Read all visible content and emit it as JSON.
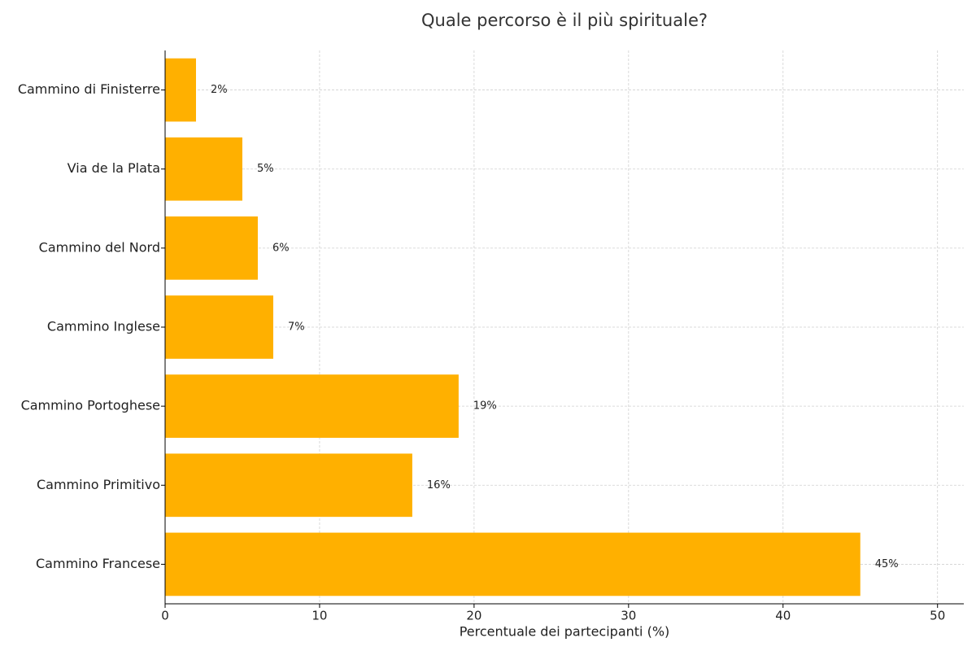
{
  "chart_data": {
    "type": "hbar",
    "title": "Quale percorso è il più spirituale?",
    "x_label": "Percentuale dei partecipanti (%)",
    "categories": [
      "Cammino di Finisterre",
      "Via de la Plata",
      "Cammino del Nord",
      "Cammino Inglese",
      "Cammino Portoghese",
      "Cammino Primitivo",
      "Cammino Francese"
    ],
    "values": [
      2,
      5,
      6,
      7,
      19,
      16,
      45
    ],
    "value_labels": [
      "2%",
      "5%",
      "6%",
      "7%",
      "19%",
      "16%",
      "45%"
    ],
    "color": "#ffb000",
    "xlim": [
      0,
      51.7
    ],
    "xticks": [
      0,
      10,
      20,
      30,
      40,
      50
    ],
    "grid": true
  }
}
